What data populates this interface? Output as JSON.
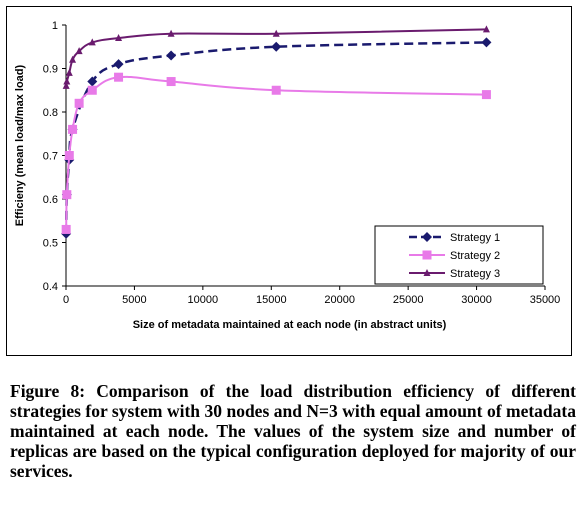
{
  "chart_data": {
    "type": "line",
    "xlabel": "Size of metadata maintained at each node (in abstract units)",
    "ylabel": "Efficieny (mean load/max load)",
    "xlim": [
      0,
      35000
    ],
    "ylim": [
      0.4,
      1.0
    ],
    "x_ticks": [
      "0",
      "5000",
      "10000",
      "15000",
      "20000",
      "25000",
      "30000",
      "35000"
    ],
    "y_ticks": [
      "0.4",
      "0.5",
      "0.6",
      "0.7",
      "0.8",
      "0.9",
      "1"
    ],
    "grid": false,
    "legend_position": "bottom-right",
    "series": [
      {
        "name": "Strategy 1",
        "color": "#1a1a6e",
        "marker": "diamond",
        "line_style": "dashed",
        "x": [
          12,
          60,
          240,
          480,
          1920,
          3840,
          7680,
          15360,
          30720
        ],
        "y": [
          0.52,
          0.61,
          0.69,
          0.76,
          0.87,
          0.91,
          0.93,
          0.95,
          0.96
        ]
      },
      {
        "name": "Strategy 2",
        "color": "#e87ae8",
        "marker": "square",
        "line_style": "solid",
        "x": [
          12,
          60,
          240,
          480,
          960,
          1920,
          3840,
          7680,
          15360,
          30720
        ],
        "y": [
          0.53,
          0.61,
          0.7,
          0.76,
          0.82,
          0.85,
          0.88,
          0.87,
          0.85,
          0.84
        ]
      },
      {
        "name": "Strategy 3",
        "color": "#6a1b6e",
        "marker": "triangle",
        "line_style": "solid",
        "x": [
          12,
          60,
          240,
          480,
          960,
          1920,
          3840,
          7680,
          15360,
          30720
        ],
        "y": [
          0.86,
          0.87,
          0.89,
          0.92,
          0.94,
          0.96,
          0.97,
          0.98,
          0.98,
          0.99
        ]
      }
    ]
  },
  "caption": "Figure 8: Comparison of the load distribution efficiency of different strategies for system with 30 nodes and N=3 with equal amount of metadata maintained at each node. The values of the system size and number of replicas are based on the typical configuration deployed for majority of our services."
}
